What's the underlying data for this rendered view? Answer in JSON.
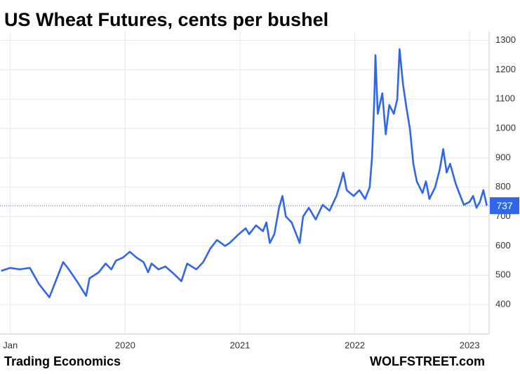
{
  "chart_data": {
    "type": "line",
    "title": "US Wheat Futures, cents per bushel",
    "source": "Trading Economics",
    "credit": "WOLFSTREET.com",
    "x": [
      2018.92,
      2019.0,
      2019.08,
      2019.17,
      2019.25,
      2019.34,
      2019.38,
      2019.46,
      2019.5,
      2019.58,
      2019.66,
      2019.69,
      2019.77,
      2019.83,
      2019.88,
      2019.92,
      2019.98,
      2020.04,
      2020.1,
      2020.16,
      2020.2,
      2020.23,
      2020.29,
      2020.35,
      2020.41,
      2020.49,
      2020.54,
      2020.62,
      2020.68,
      2020.74,
      2020.8,
      2020.87,
      2020.91,
      2020.99,
      2021.05,
      2021.08,
      2021.14,
      2021.2,
      2021.23,
      2021.26,
      2021.3,
      2021.34,
      2021.37,
      2021.4,
      2021.45,
      2021.49,
      2021.52,
      2021.55,
      2021.6,
      2021.66,
      2021.72,
      2021.78,
      2021.84,
      2021.88,
      2021.9,
      2021.93,
      2021.99,
      2022.04,
      2022.09,
      2022.13,
      2022.15,
      2022.17,
      2022.18,
      2022.2,
      2022.24,
      2022.27,
      2022.3,
      2022.34,
      2022.37,
      2022.39,
      2022.42,
      2022.45,
      2022.48,
      2022.51,
      2022.54,
      2022.59,
      2022.62,
      2022.65,
      2022.7,
      2022.74,
      2022.77,
      2022.8,
      2022.83,
      2022.88,
      2022.93,
      2022.95,
      2023.0,
      2023.03,
      2023.06,
      2023.09,
      2023.12,
      2023.15
    ],
    "series": [
      {
        "name": "US Wheat Futures",
        "color": "#2f66ea",
        "values": [
          515,
          525,
          520,
          525,
          470,
          425,
          465,
          545,
          525,
          480,
          430,
          490,
          510,
          540,
          520,
          550,
          560,
          580,
          560,
          545,
          510,
          540,
          520,
          530,
          510,
          480,
          540,
          520,
          545,
          590,
          620,
          600,
          610,
          640,
          660,
          640,
          670,
          650,
          680,
          610,
          640,
          730,
          770,
          700,
          680,
          640,
          610,
          700,
          730,
          690,
          740,
          720,
          770,
          820,
          850,
          790,
          770,
          790,
          760,
          800,
          900,
          1100,
          1250,
          1050,
          1120,
          980,
          1080,
          1050,
          1100,
          1270,
          1150,
          1070,
          1000,
          880,
          820,
          780,
          820,
          760,
          800,
          860,
          930,
          850,
          880,
          810,
          760,
          740,
          750,
          770,
          730,
          750,
          790,
          737
        ]
      }
    ],
    "xlim": [
      2018.91,
      2023.17
    ],
    "xticks": [
      {
        "value": 2019,
        "label": "Jan"
      },
      2020,
      2021,
      2022,
      2023
    ],
    "ylim": [
      300,
      1330
    ],
    "yticks": [
      400,
      500,
      600,
      700,
      800,
      900,
      1000,
      1100,
      1200,
      1300
    ],
    "grid": true
  }
}
